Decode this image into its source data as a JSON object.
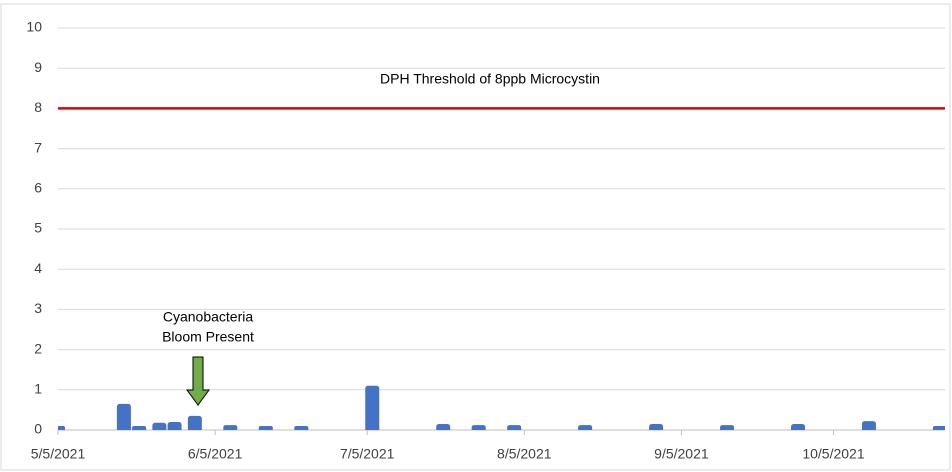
{
  "chart_data": {
    "type": "bar",
    "x": [
      "5/5/2021",
      "5/18/2021",
      "5/21/2021",
      "5/25/2021",
      "5/28/2021",
      "6/1/2021",
      "6/8/2021",
      "6/15/2021",
      "6/22/2021",
      "7/6/2021",
      "7/20/2021",
      "7/27/2021",
      "8/3/2021",
      "8/17/2021",
      "8/31/2021",
      "9/14/2021",
      "9/28/2021",
      "10/12/2021",
      "10/26/2021"
    ],
    "values": [
      0.1,
      0.65,
      0.1,
      0.18,
      0.2,
      0.35,
      0.12,
      0.1,
      0.1,
      1.1,
      0.15,
      0.12,
      0.12,
      0.12,
      0.15,
      0.12,
      0.15,
      0.22,
      0.1
    ],
    "color": "#4472c4",
    "xlim": [
      "5/5/2021",
      "10/27/2021"
    ],
    "xticks": [
      "5/5/2021",
      "6/5/2021",
      "7/5/2021",
      "8/5/2021",
      "9/5/2021",
      "10/5/2021"
    ],
    "ylim": [
      0,
      10
    ],
    "yticks": [
      0,
      1,
      2,
      3,
      4,
      5,
      6,
      7,
      8,
      9,
      10
    ],
    "grid": true,
    "threshold": {
      "value": 8,
      "color": "#e00000",
      "label": "DPH Threshold of 8ppb Microcystin"
    },
    "annotation": {
      "lines": [
        "Cyanobacteria",
        "Bloom Present"
      ],
      "color": "#70ad47"
    }
  }
}
